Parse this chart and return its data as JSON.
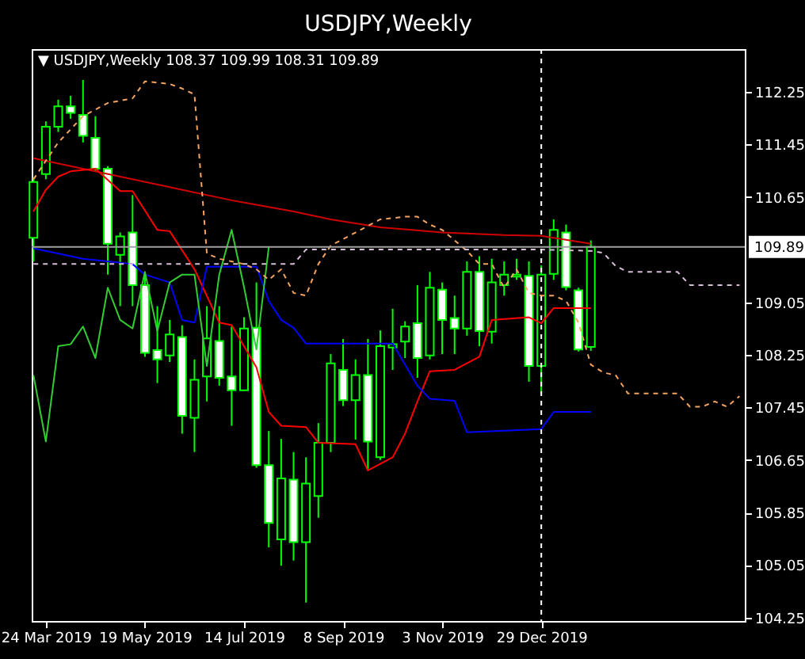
{
  "chart_data": {
    "type": "candlestick",
    "title": "USDJPY,Weekly",
    "annotations": [
      "▼ USDJPY,Weekly  108.37 109.99 108.31 109.89"
    ],
    "color": "#00ff00",
    "x": [
      "2019-03-17",
      "2019-03-24",
      "2019-03-31",
      "2019-04-07",
      "2019-04-14",
      "2019-04-21",
      "2019-04-28",
      "2019-05-05",
      "2019-05-12",
      "2019-05-19",
      "2019-05-26",
      "2019-06-02",
      "2019-06-09",
      "2019-06-16",
      "2019-06-23",
      "2019-06-30",
      "2019-07-07",
      "2019-07-14",
      "2019-07-21",
      "2019-07-28",
      "2019-08-04",
      "2019-08-11",
      "2019-08-18",
      "2019-08-25",
      "2019-09-01",
      "2019-09-08",
      "2019-09-15",
      "2019-09-22",
      "2019-09-29",
      "2019-10-06",
      "2019-10-13",
      "2019-10-20",
      "2019-10-27",
      "2019-11-03",
      "2019-11-10",
      "2019-11-17",
      "2019-11-24",
      "2019-12-01",
      "2019-12-08",
      "2019-12-15",
      "2019-12-22",
      "2019-12-29",
      "2020-01-05",
      "2020-01-12",
      "2020-01-19",
      "2020-01-26"
    ],
    "ohlc": [
      [
        110.03,
        110.95,
        109.67,
        110.88
      ],
      [
        111.0,
        111.8,
        110.92,
        111.72
      ],
      [
        111.72,
        112.13,
        111.64,
        112.03
      ],
      [
        112.03,
        112.19,
        111.84,
        111.93
      ],
      [
        111.9,
        112.43,
        111.48,
        111.58
      ],
      [
        111.55,
        111.88,
        111.04,
        111.08
      ],
      [
        111.08,
        111.12,
        109.47,
        109.94
      ],
      [
        109.77,
        110.11,
        108.99,
        110.05
      ],
      [
        110.11,
        110.68,
        108.99,
        109.31
      ],
      [
        109.31,
        109.47,
        108.22,
        108.28
      ],
      [
        108.32,
        108.99,
        107.82,
        108.18
      ],
      [
        108.24,
        108.78,
        108.14,
        108.56
      ],
      [
        108.52,
        108.7,
        107.05,
        107.32
      ],
      [
        107.29,
        108.18,
        106.77,
        107.87
      ],
      [
        107.92,
        108.99,
        107.54,
        108.5
      ],
      [
        108.46,
        108.99,
        107.78,
        107.9
      ],
      [
        107.92,
        108.68,
        107.17,
        107.71
      ],
      [
        107.71,
        108.82,
        107.7,
        108.65
      ],
      [
        108.66,
        109.35,
        106.53,
        106.57
      ],
      [
        106.57,
        107.09,
        105.32,
        105.69
      ],
      [
        105.44,
        106.97,
        105.04,
        106.37
      ],
      [
        106.35,
        106.77,
        105.12,
        105.4
      ],
      [
        105.4,
        106.69,
        104.48,
        106.29
      ],
      [
        106.1,
        107.21,
        105.77,
        106.91
      ],
      [
        106.91,
        108.26,
        106.77,
        108.12
      ],
      [
        108.02,
        108.49,
        107.47,
        107.56
      ],
      [
        107.56,
        108.18,
        106.96,
        107.94
      ],
      [
        107.94,
        108.49,
        106.49,
        106.93
      ],
      [
        106.69,
        108.62,
        106.65,
        108.38
      ],
      [
        108.36,
        108.95,
        108.02,
        108.41
      ],
      [
        108.45,
        108.76,
        108.2,
        108.68
      ],
      [
        108.73,
        109.31,
        107.9,
        108.2
      ],
      [
        108.24,
        109.51,
        108.18,
        109.27
      ],
      [
        109.24,
        109.35,
        108.26,
        108.78
      ],
      [
        108.81,
        109.15,
        108.26,
        108.65
      ],
      [
        108.65,
        109.67,
        108.54,
        109.51
      ],
      [
        109.51,
        109.75,
        108.38,
        108.61
      ],
      [
        108.6,
        109.71,
        108.42,
        109.35
      ],
      [
        109.31,
        109.67,
        109.15,
        109.47
      ],
      [
        109.44,
        109.71,
        109.39,
        109.47
      ],
      [
        109.45,
        109.67,
        107.84,
        108.08
      ],
      [
        108.08,
        109.61,
        107.66,
        109.47
      ],
      [
        109.48,
        110.31,
        109.39,
        110.15
      ],
      [
        110.11,
        110.23,
        109.23,
        109.28
      ],
      [
        109.23,
        109.27,
        108.3,
        108.33
      ],
      [
        108.37,
        109.99,
        108.31,
        109.89
      ]
    ],
    "series": [
      {
        "type": "line",
        "color": "#d00000",
        "x": [
          "2019-03-17",
          "2019-04-07",
          "2019-05-05",
          "2019-06-02",
          "2019-07-07",
          "2019-08-11",
          "2019-09-01",
          "2019-09-29",
          "2019-11-03",
          "2019-12-08",
          "2019-12-29",
          "2020-01-26"
        ],
        "values": [
          111.24,
          111.12,
          110.96,
          110.8,
          110.6,
          110.43,
          110.31,
          110.19,
          110.11,
          110.07,
          110.06,
          109.94
        ]
      },
      {
        "type": "line",
        "color": "#ff0000",
        "x": [
          "2019-03-17",
          "2019-03-24",
          "2019-03-31",
          "2019-04-07",
          "2019-04-21",
          "2019-05-05",
          "2019-05-12",
          "2019-05-26",
          "2019-06-02",
          "2019-06-16",
          "2019-06-30",
          "2019-07-07",
          "2019-07-21",
          "2019-07-28",
          "2019-08-04",
          "2019-08-18",
          "2019-08-25",
          "2019-09-15",
          "2019-09-22",
          "2019-10-06",
          "2019-10-13",
          "2019-10-20",
          "2019-10-27",
          "2019-11-10",
          "2019-11-24",
          "2019-12-01",
          "2019-12-22",
          "2019-12-29",
          "2020-01-05",
          "2020-01-26"
        ],
        "values": [
          110.43,
          110.76,
          110.96,
          111.04,
          111.08,
          110.74,
          110.74,
          110.15,
          110.13,
          109.55,
          108.74,
          108.7,
          108.06,
          107.38,
          107.17,
          107.15,
          106.91,
          106.89,
          106.49,
          106.69,
          107.05,
          107.54,
          108.0,
          108.02,
          108.22,
          108.78,
          108.82,
          108.73,
          108.96,
          108.96
        ]
      },
      {
        "type": "line",
        "color": "#0000ff",
        "x": [
          "2019-03-17",
          "2019-04-14",
          "2019-04-28",
          "2019-05-12",
          "2019-05-19",
          "2019-06-02",
          "2019-06-09",
          "2019-06-16",
          "2019-06-23",
          "2019-07-21",
          "2019-07-28",
          "2019-08-04",
          "2019-08-11",
          "2019-08-18",
          "2019-10-06",
          "2019-10-20",
          "2019-10-27",
          "2019-11-10",
          "2019-11-17",
          "2019-12-29",
          "2020-01-05",
          "2020-01-26"
        ],
        "values": [
          109.87,
          109.71,
          109.67,
          109.63,
          109.47,
          109.35,
          108.78,
          108.74,
          109.59,
          109.59,
          109.07,
          108.78,
          108.66,
          108.42,
          108.42,
          107.78,
          107.58,
          107.55,
          107.07,
          107.12,
          107.38,
          107.38
        ]
      },
      {
        "type": "line",
        "color": "#32cd32",
        "x": [
          "2019-03-17",
          "2019-03-24",
          "2019-03-31",
          "2019-04-07",
          "2019-04-14",
          "2019-04-21",
          "2019-04-28",
          "2019-05-05",
          "2019-05-12",
          "2019-05-19",
          "2019-05-26",
          "2019-06-02",
          "2019-06-09",
          "2019-06-16",
          "2019-06-23",
          "2019-06-30",
          "2019-07-07",
          "2019-07-14",
          "2019-07-21",
          "2019-07-28"
        ],
        "values": [
          107.94,
          106.93,
          108.38,
          108.41,
          108.68,
          108.2,
          109.27,
          108.78,
          108.65,
          109.51,
          108.61,
          109.35,
          109.47,
          109.47,
          108.08,
          109.47,
          110.15,
          109.28,
          108.33,
          109.89
        ]
      },
      {
        "type": "line",
        "color": "#f4a460",
        "line_style": "dashed",
        "x": [
          "2019-03-17",
          "2019-03-31",
          "2019-04-14",
          "2019-04-28",
          "2019-05-12",
          "2019-05-19",
          "2019-06-02",
          "2019-06-09",
          "2019-06-16",
          "2019-06-23",
          "2019-06-30",
          "2019-07-07",
          "2019-07-14",
          "2019-07-21",
          "2019-07-28",
          "2019-08-04",
          "2019-08-11",
          "2019-08-18",
          "2019-08-25",
          "2019-09-01",
          "2019-09-15",
          "2019-09-29",
          "2019-10-13",
          "2019-10-20",
          "2019-10-27",
          "2019-11-03",
          "2019-11-10",
          "2019-11-17",
          "2019-11-24",
          "2019-12-01",
          "2019-12-08",
          "2019-12-15",
          "2019-12-22",
          "2019-12-29",
          "2020-01-05",
          "2020-01-12",
          "2020-01-19",
          "2020-01-26",
          "2020-02-02",
          "2020-02-09",
          "2020-02-16",
          "2020-03-15",
          "2020-03-22",
          "2020-03-29",
          "2020-04-05",
          "2020-04-12",
          "2020-04-19"
        ],
        "values": [
          110.92,
          111.48,
          111.88,
          112.08,
          112.15,
          112.41,
          112.37,
          112.3,
          112.21,
          109.79,
          109.71,
          109.67,
          109.63,
          109.55,
          109.39,
          109.55,
          109.19,
          109.15,
          109.63,
          109.91,
          110.11,
          110.31,
          110.35,
          110.35,
          110.23,
          110.15,
          109.99,
          109.83,
          109.63,
          109.63,
          109.27,
          109.55,
          109.19,
          109.15,
          109.15,
          109.07,
          108.74,
          108.1,
          107.98,
          107.94,
          107.66,
          107.66,
          107.46,
          107.46,
          107.54,
          107.46,
          107.62
        ]
      },
      {
        "type": "line",
        "color": "#d8bfd8",
        "line_style": "dashed",
        "x": [
          "2019-03-17",
          "2019-08-11",
          "2019-08-18",
          "2019-12-29",
          "2020-01-26",
          "2020-02-02",
          "2020-02-09",
          "2020-02-16",
          "2020-03-15",
          "2020-03-22",
          "2020-04-19"
        ],
        "values": [
          109.63,
          109.63,
          109.85,
          109.85,
          109.83,
          109.8,
          109.6,
          109.51,
          109.51,
          109.31,
          109.31
        ]
      }
    ],
    "ref_lines": [
      {
        "axis": "y",
        "value": 109.89,
        "label": "109.89",
        "color": "#a0a0a0"
      },
      {
        "axis": "x",
        "value": "2019-12-29",
        "label": null,
        "color": "#ffffff",
        "line_style": "dashed"
      }
    ],
    "xlim": [
      "2019-03-16",
      "2020-04-22"
    ],
    "xticks": [
      {
        "value": "2019-03-24",
        "label": "24 Mar 2019"
      },
      {
        "value": "2019-05-19",
        "label": "19 May 2019"
      },
      {
        "value": "2019-07-14",
        "label": "14 Jul 2019"
      },
      {
        "value": "2019-09-08",
        "label": "8 Sep 2019"
      },
      {
        "value": "2019-11-03",
        "label": "3 Nov 2019"
      },
      {
        "value": "2019-12-29",
        "label": "29 Dec 2019"
      }
    ],
    "ylim": [
      104.2,
      112.9
    ],
    "yticks": [
      104.25,
      105.05,
      105.85,
      106.65,
      107.45,
      108.25,
      109.05,
      110.65,
      111.45,
      112.25
    ],
    "grid": false
  }
}
